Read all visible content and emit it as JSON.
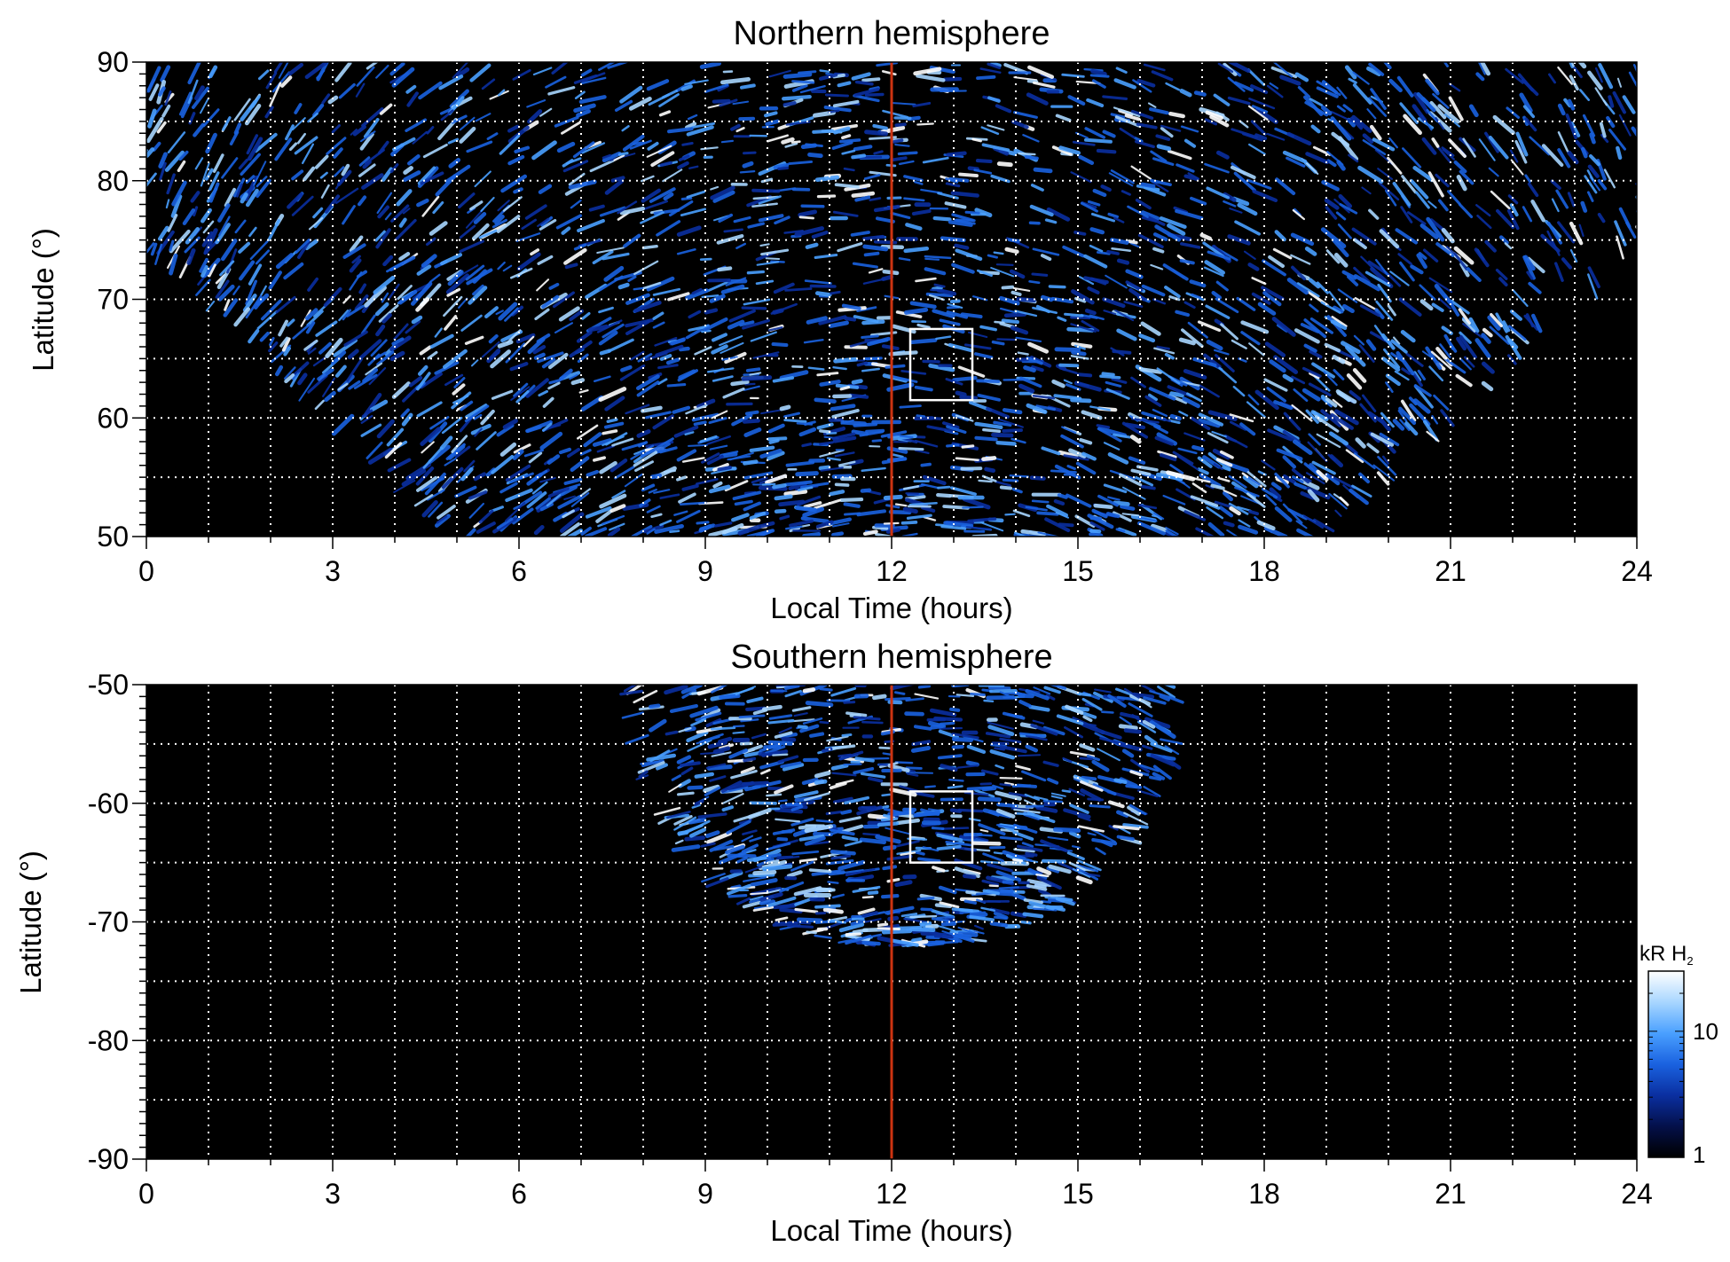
{
  "chart_data": [
    {
      "type": "heatmap",
      "title": "Northern hemisphere",
      "xlabel": "Local Time (hours)",
      "ylabel": "Latitude (°)",
      "xlim": [
        0,
        24
      ],
      "ylim": [
        50,
        90
      ],
      "x_ticks": [
        0,
        3,
        6,
        9,
        12,
        15,
        18,
        21,
        24
      ],
      "y_ticks": [
        50,
        60,
        70,
        80,
        90
      ],
      "x_tick_labels": [
        "0",
        "3",
        "6",
        "9",
        "12",
        "15",
        "18",
        "21",
        "24"
      ],
      "y_tick_labels": [
        "50",
        "60",
        "70",
        "80",
        "90"
      ],
      "grid": true,
      "grid_x_step": 1,
      "grid_y_step": 5,
      "coverage": "dense streaks from ~0-24 h near the pole, narrowing to ~5-19 h at 50°",
      "marker_line": {
        "x": 12,
        "color": "#cc3311"
      },
      "highlight_box": {
        "x": [
          12.3,
          13.3
        ],
        "y": [
          61.5,
          67.5
        ],
        "color": "#ffffff"
      }
    },
    {
      "type": "heatmap",
      "title": "Southern hemisphere",
      "xlabel": "Local Time (hours)",
      "ylabel": "Latitude (°)",
      "xlim": [
        0,
        24
      ],
      "ylim": [
        -90,
        -50
      ],
      "x_ticks": [
        0,
        3,
        6,
        9,
        12,
        15,
        18,
        21,
        24
      ],
      "y_ticks": [
        -90,
        -80,
        -70,
        -60,
        -50
      ],
      "x_tick_labels": [
        "0",
        "3",
        "6",
        "9",
        "12",
        "15",
        "18",
        "21",
        "24"
      ],
      "y_tick_labels": [
        "-90",
        "-80",
        "-70",
        "-60",
        "-50"
      ],
      "grid": true,
      "grid_x_step": 1,
      "grid_y_step": 5,
      "coverage": "fan of streaks from ~8-16.5 h at -50° down to ~-72° near 12 h",
      "marker_line": {
        "x": 12,
        "color": "#cc3311"
      },
      "highlight_box": {
        "x": [
          12.3,
          13.3
        ],
        "y": [
          -65,
          -59
        ],
        "color": "#ffffff"
      }
    }
  ],
  "colorbar": {
    "label_main": "kR H",
    "label_sub": "2",
    "scale": "log",
    "range": [
      1,
      30
    ],
    "ticks": [
      1,
      10
    ],
    "tick_labels": [
      "1",
      "10"
    ],
    "colors": [
      "#000000",
      "#04104a",
      "#0a2fa0",
      "#1a62e0",
      "#4aa0ff",
      "#a8d6ff",
      "#ffffff"
    ]
  },
  "colors": {
    "background": "#000000",
    "grid": "#ffffff",
    "marker": "#cc3311",
    "box": "#ffffff"
  }
}
